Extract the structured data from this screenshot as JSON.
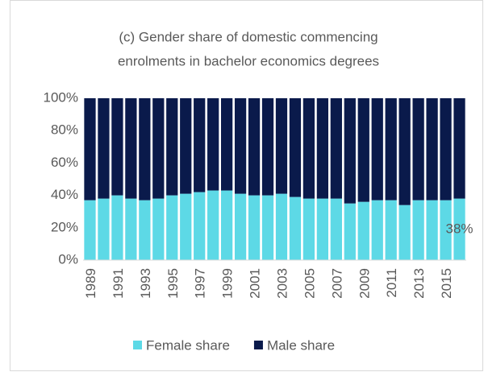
{
  "chart_data": {
    "type": "stacked_bar",
    "title": [
      "(c) Gender share of domestic commencing",
      "enrolments in bachelor economics degrees"
    ],
    "categories": [
      "1989",
      null,
      "1991",
      null,
      "1993",
      null,
      "1995",
      null,
      "1997",
      null,
      "1999",
      null,
      "2001",
      null,
      "2003",
      null,
      "2005",
      null,
      "2007",
      null,
      "2009",
      null,
      "2011",
      null,
      "2013",
      null,
      "2015",
      null
    ],
    "series": [
      {
        "name": "Female share",
        "color": "#5dd9e6",
        "values": [
          37,
          38,
          40,
          38,
          37,
          38,
          40,
          41,
          42,
          43,
          43,
          41,
          40,
          40,
          41,
          39,
          38,
          38,
          38,
          35,
          36,
          37,
          37,
          34,
          37,
          37,
          37,
          38
        ],
        "value_labels": [
          null,
          null,
          null,
          null,
          null,
          null,
          null,
          null,
          null,
          null,
          null,
          null,
          null,
          null,
          null,
          null,
          null,
          null,
          null,
          null,
          null,
          null,
          null,
          null,
          null,
          null,
          null,
          "38%"
        ]
      },
      {
        "name": "Male share",
        "color": "#0a1a4b",
        "values": [
          63,
          62,
          60,
          62,
          63,
          62,
          60,
          59,
          58,
          57,
          57,
          59,
          60,
          60,
          59,
          61,
          62,
          62,
          62,
          65,
          64,
          63,
          63,
          66,
          63,
          63,
          63,
          62
        ]
      }
    ],
    "ylim": [
      0,
      100
    ],
    "yticks": [
      {
        "value": 0,
        "label": "0%"
      },
      {
        "value": 20,
        "label": "20%"
      },
      {
        "value": 40,
        "label": "40%"
      },
      {
        "value": 60,
        "label": "60%"
      },
      {
        "value": 80,
        "label": "80%"
      },
      {
        "value": 100,
        "label": "100%"
      }
    ],
    "legend": "bottom"
  }
}
